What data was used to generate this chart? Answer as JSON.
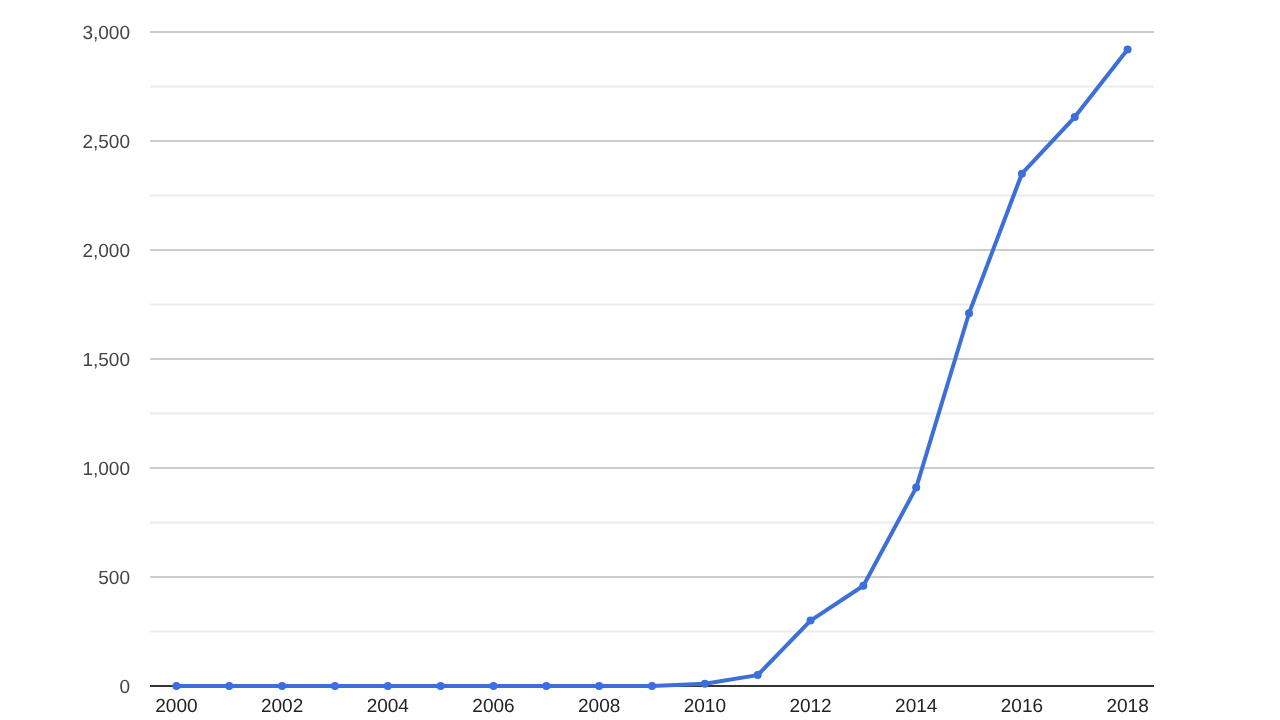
{
  "chart_data": {
    "type": "line",
    "x": [
      2000,
      2001,
      2002,
      2003,
      2004,
      2005,
      2006,
      2007,
      2008,
      2009,
      2010,
      2011,
      2012,
      2013,
      2014,
      2015,
      2016,
      2017,
      2018
    ],
    "series": [
      {
        "color": "#3c6fd8",
        "values": [
          0,
          0,
          0,
          0,
          0,
          0,
          0,
          0,
          0,
          0,
          10,
          50,
          300,
          460,
          910,
          1710,
          2350,
          2610,
          2920
        ]
      }
    ],
    "xlim": [
      1999.5,
      2018.5
    ],
    "xticks": [
      2000,
      2002,
      2004,
      2006,
      2008,
      2010,
      2012,
      2014,
      2016,
      2018
    ],
    "ylim": [
      0,
      3000
    ],
    "yticks": [
      0,
      {
        "value": 250,
        "label": null
      },
      500,
      {
        "value": 750,
        "label": null
      },
      {
        "value": 1000,
        "label": "1,000"
      },
      {
        "value": 1250,
        "label": null
      },
      {
        "value": 1500,
        "label": "1,500"
      },
      {
        "value": 1750,
        "label": null
      },
      {
        "value": 2000,
        "label": "2,000"
      },
      {
        "value": 2250,
        "label": null
      },
      {
        "value": 2500,
        "label": "2,500"
      },
      {
        "value": 2750,
        "label": null
      },
      {
        "value": 3000,
        "label": "3,000"
      }
    ],
    "grid": "y",
    "marker": "circle",
    "line_style": "solid"
  }
}
